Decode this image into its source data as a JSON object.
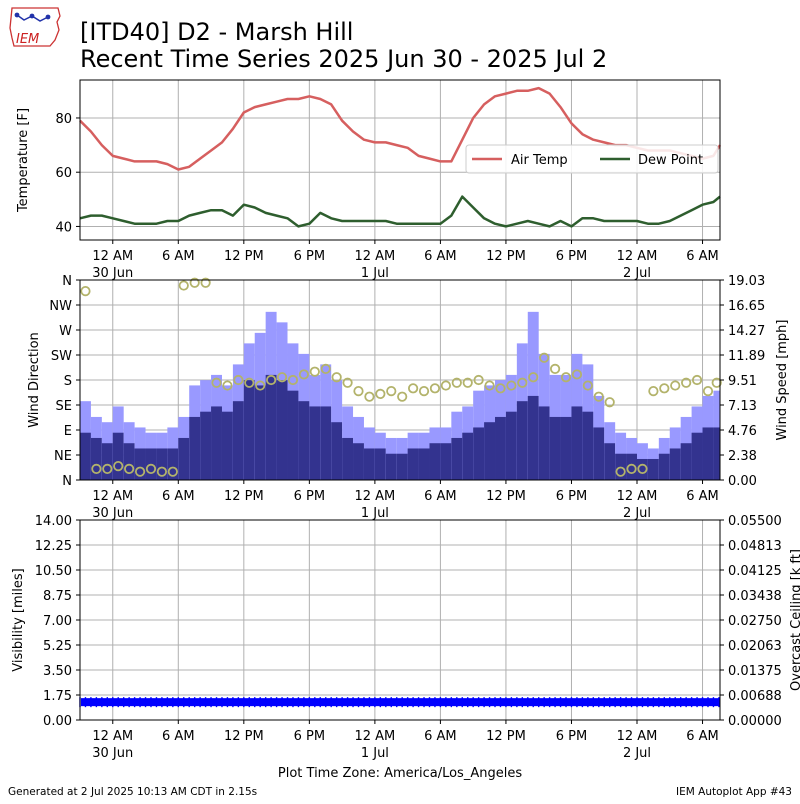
{
  "header": {
    "title_line1": "[ITD40] D2 - Marsh Hill",
    "title_line2": "Recent Time Series 2025 Jun 30 - 2025 Jul 2",
    "logo_text": "IEM"
  },
  "footer": {
    "generated": "Generated at 2 Jul 2025 10:13 AM CDT in 2.15s",
    "app": "IEM Autoplot App #43",
    "timezone_label": "Plot Time Zone: America/Los_Angeles"
  },
  "colors": {
    "air_temp": "#d65f5f",
    "dew_point": "#2e5e2e",
    "gust": "#9999ff",
    "wind_speed": "#33338f",
    "direction_marker": "#b3b36b",
    "visibility": "#0000ff",
    "ceiling_axis": "#008000",
    "grid": "#b0b0b0"
  },
  "x_axis": {
    "ticks": [
      {
        "hour": 3,
        "label": "12 AM",
        "date": "30 Jun"
      },
      {
        "hour": 9,
        "label": "6 AM",
        "date": ""
      },
      {
        "hour": 15,
        "label": "12 PM",
        "date": ""
      },
      {
        "hour": 21,
        "label": "6 PM",
        "date": ""
      },
      {
        "hour": 27,
        "label": "12 AM",
        "date": "1 Jul"
      },
      {
        "hour": 33,
        "label": "6 AM",
        "date": ""
      },
      {
        "hour": 39,
        "label": "12 PM",
        "date": ""
      },
      {
        "hour": 45,
        "label": "6 PM",
        "date": ""
      },
      {
        "hour": 51,
        "label": "12 AM",
        "date": "2 Jul"
      },
      {
        "hour": 57,
        "label": "6 AM",
        "date": ""
      }
    ]
  },
  "chart_data": [
    {
      "type": "line",
      "ylabel": "Temperature [F]",
      "ylim": [
        35,
        94
      ],
      "yticks": [
        40,
        60,
        80
      ],
      "xlim": [
        0,
        58.6
      ],
      "grid": true,
      "legend": {
        "placement": "right, lower-middle",
        "entries": [
          "Air Temp",
          "Dew Point"
        ]
      },
      "series": [
        {
          "name": "Air Temp",
          "x": [
            0,
            1,
            2,
            3,
            4,
            5,
            6,
            7,
            8,
            9,
            10,
            11,
            12,
            13,
            14,
            15,
            16,
            17,
            18,
            19,
            20,
            21,
            22,
            23,
            24,
            25,
            26,
            27,
            28,
            29,
            30,
            31,
            32,
            33,
            34,
            35,
            36,
            37,
            38,
            39,
            40,
            41,
            42,
            43,
            44,
            45,
            46,
            47,
            48,
            49,
            50,
            51,
            52,
            53,
            54,
            55,
            56,
            57,
            58,
            58.6
          ],
          "y": [
            79,
            75,
            70,
            66,
            65,
            64,
            64,
            64,
            63,
            61,
            62,
            65,
            68,
            71,
            76,
            82,
            84,
            85,
            86,
            87,
            87,
            88,
            87,
            85,
            79,
            75,
            72,
            71,
            71,
            70,
            69,
            66,
            65,
            64,
            64,
            72,
            80,
            85,
            88,
            89,
            90,
            90,
            91,
            89,
            84,
            78,
            74,
            72,
            71,
            70,
            70,
            69,
            68,
            68,
            68,
            67,
            66,
            65,
            66,
            70
          ]
        },
        {
          "name": "Dew Point",
          "x": [
            0,
            1,
            2,
            3,
            4,
            5,
            6,
            7,
            8,
            9,
            10,
            11,
            12,
            13,
            14,
            15,
            16,
            17,
            18,
            19,
            20,
            21,
            22,
            23,
            24,
            25,
            26,
            27,
            28,
            29,
            30,
            31,
            32,
            33,
            34,
            35,
            36,
            37,
            38,
            39,
            40,
            41,
            42,
            43,
            44,
            45,
            46,
            47,
            48,
            49,
            50,
            51,
            52,
            53,
            54,
            55,
            56,
            57,
            58,
            58.6
          ],
          "y": [
            43,
            44,
            44,
            43,
            42,
            41,
            41,
            41,
            42,
            42,
            44,
            45,
            46,
            46,
            44,
            48,
            47,
            45,
            44,
            43,
            40,
            41,
            45,
            43,
            42,
            42,
            42,
            42,
            42,
            41,
            41,
            41,
            41,
            41,
            44,
            51,
            47,
            43,
            41,
            40,
            41,
            42,
            41,
            40,
            42,
            40,
            43,
            43,
            42,
            42,
            42,
            42,
            41,
            41,
            42,
            44,
            46,
            48,
            49,
            51
          ]
        }
      ]
    },
    {
      "type": "bar",
      "ylabel": "Wind Direction",
      "ylabel_right": "Wind Speed [mph]",
      "ylim": [
        0,
        360
      ],
      "direction_ticks": [
        {
          "deg": 0,
          "label": "N"
        },
        {
          "deg": 45,
          "label": "NE"
        },
        {
          "deg": 90,
          "label": "E"
        },
        {
          "deg": 135,
          "label": "SE"
        },
        {
          "deg": 180,
          "label": "S"
        },
        {
          "deg": 225,
          "label": "SW"
        },
        {
          "deg": 270,
          "label": "W"
        },
        {
          "deg": 315,
          "label": "NW"
        },
        {
          "deg": 360,
          "label": "N"
        }
      ],
      "speed_ylim": [
        0,
        19.03
      ],
      "speed_ticks": [
        "0.00",
        "2.38",
        "4.76",
        "7.13",
        "9.51",
        "11.89",
        "14.27",
        "16.65",
        "19.03"
      ],
      "grid": true,
      "hours": [
        0,
        1,
        2,
        3,
        4,
        5,
        6,
        7,
        8,
        9,
        10,
        11,
        12,
        13,
        14,
        15,
        16,
        17,
        18,
        19,
        20,
        21,
        22,
        23,
        24,
        25,
        26,
        27,
        28,
        29,
        30,
        31,
        32,
        33,
        34,
        35,
        36,
        37,
        38,
        39,
        40,
        41,
        42,
        43,
        44,
        45,
        46,
        47,
        48,
        49,
        50,
        51,
        52,
        53,
        54,
        55,
        56,
        57,
        58
      ],
      "series": [
        {
          "name": "Gust",
          "values": [
            7.5,
            6.0,
            5.5,
            7.0,
            5.5,
            5.0,
            4.5,
            4.5,
            5.0,
            6.0,
            9.0,
            9.5,
            10.0,
            9.0,
            11.0,
            13.0,
            14.0,
            16.0,
            15.0,
            13.0,
            12.0,
            10.0,
            11.0,
            9.5,
            7.0,
            6.0,
            5.0,
            4.5,
            4.0,
            4.0,
            4.5,
            4.5,
            5.0,
            5.0,
            6.5,
            7.0,
            8.5,
            9.0,
            9.5,
            10.0,
            13.0,
            16.0,
            12.0,
            10.0,
            10.0,
            12.0,
            11.0,
            8.0,
            5.5,
            4.5,
            4.0,
            3.5,
            3.0,
            4.0,
            5.0,
            6.0,
            7.0,
            8.0,
            8.5
          ]
        },
        {
          "name": "Wind Speed",
          "values": [
            4.5,
            4.0,
            3.5,
            4.5,
            3.5,
            3.0,
            3.0,
            3.0,
            3.0,
            4.0,
            6.0,
            6.5,
            7.0,
            6.5,
            7.5,
            9.5,
            9.0,
            10.0,
            9.5,
            8.5,
            7.5,
            7.0,
            7.0,
            5.5,
            4.0,
            3.5,
            3.0,
            3.0,
            2.5,
            2.5,
            3.0,
            3.0,
            3.5,
            3.5,
            4.0,
            4.5,
            5.0,
            5.5,
            6.0,
            6.5,
            7.5,
            8.0,
            7.0,
            6.0,
            6.0,
            7.0,
            6.5,
            5.0,
            3.5,
            2.5,
            2.5,
            2.0,
            2.0,
            2.5,
            3.0,
            3.5,
            4.5,
            5.0,
            5.0
          ]
        },
        {
          "name": "Wind Direction",
          "values": [
            340,
            20,
            20,
            25,
            20,
            15,
            20,
            15,
            15,
            350,
            355,
            355,
            175,
            170,
            180,
            175,
            170,
            180,
            185,
            180,
            190,
            195,
            200,
            185,
            175,
            160,
            150,
            155,
            160,
            150,
            165,
            160,
            165,
            170,
            175,
            175,
            180,
            170,
            165,
            170,
            175,
            185,
            220,
            200,
            185,
            190,
            170,
            150,
            140,
            15,
            20,
            20,
            160,
            165,
            170,
            175,
            180,
            160,
            175
          ]
        }
      ]
    },
    {
      "type": "scatter",
      "ylabel": "Visibility [miles]",
      "ylabel_right": "Overcast Ceiling [k ft]",
      "ylim": [
        0,
        14
      ],
      "yticks": [
        "0.00",
        "1.75",
        "3.50",
        "5.25",
        "7.00",
        "8.75",
        "10.50",
        "12.25",
        "14.00"
      ],
      "right_ylim": [
        0,
        0.055
      ],
      "right_yticks": [
        "0.00000",
        "0.00688",
        "0.01375",
        "0.02063",
        "0.02750",
        "0.03438",
        "0.04125",
        "0.04813",
        "0.05500"
      ],
      "grid": true,
      "series": [
        {
          "name": "Visibility",
          "constant_value": 1.25,
          "x_range": [
            0,
            58.6
          ]
        }
      ]
    }
  ]
}
